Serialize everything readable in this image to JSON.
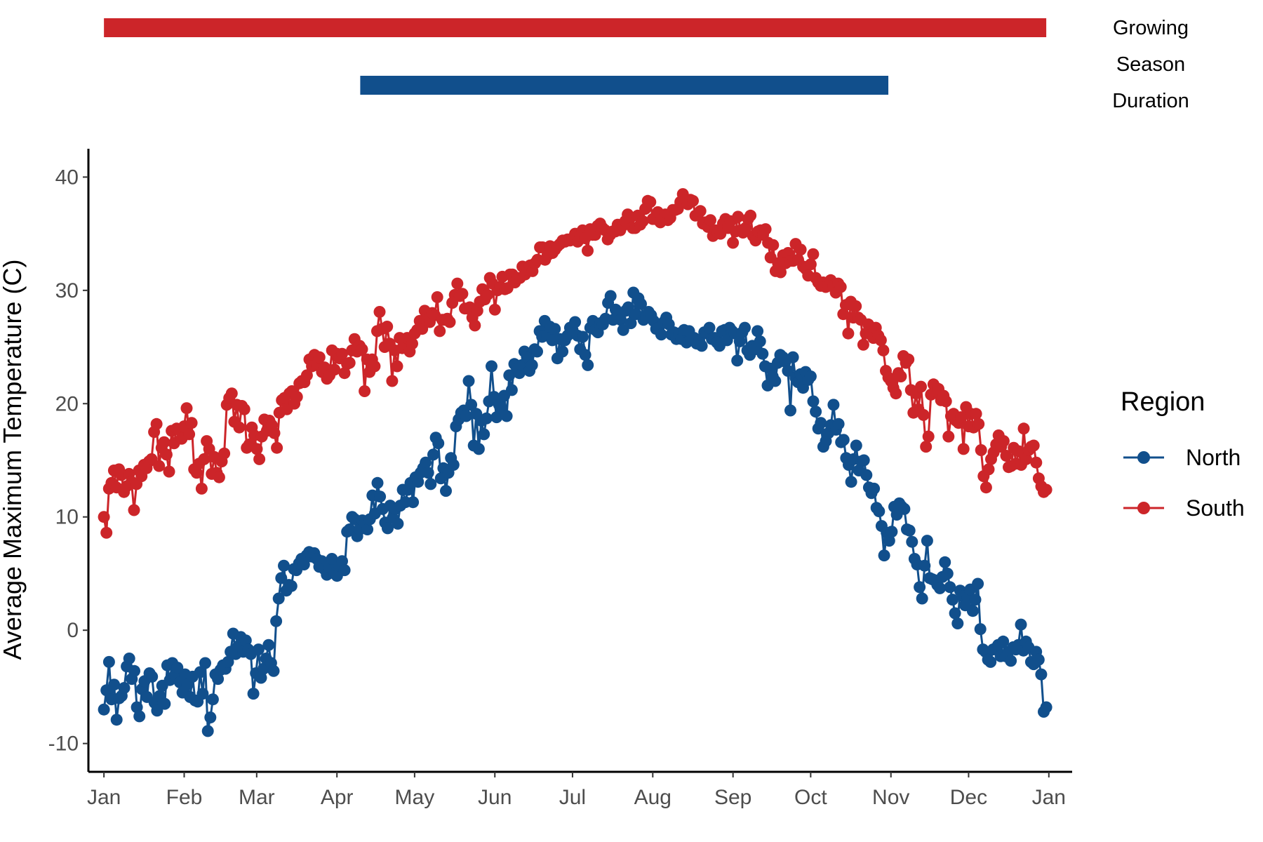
{
  "chart_data": {
    "type": "line",
    "xlabel": "",
    "ylabel": "Average Maximum Temperature (C)",
    "ylim": [
      -12.5,
      42.5
    ],
    "xlim_day": [
      -5,
      375
    ],
    "grid": false,
    "yticks": [
      {
        "value": -10,
        "label": "-10"
      },
      {
        "value": 0,
        "label": "0"
      },
      {
        "value": 10,
        "label": "10"
      },
      {
        "value": 20,
        "label": "20"
      },
      {
        "value": 30,
        "label": "30"
      },
      {
        "value": 40,
        "label": "40"
      }
    ],
    "xticks": [
      {
        "day": 1,
        "label": "Jan"
      },
      {
        "day": 32,
        "label": "Feb"
      },
      {
        "day": 60,
        "label": "Mar"
      },
      {
        "day": 91,
        "label": "Apr"
      },
      {
        "day": 121,
        "label": "May"
      },
      {
        "day": 152,
        "label": "Jun"
      },
      {
        "day": 182,
        "label": "Jul"
      },
      {
        "day": 213,
        "label": "Aug"
      },
      {
        "day": 244,
        "label": "Sep"
      },
      {
        "day": 274,
        "label": "Oct"
      },
      {
        "day": 305,
        "label": "Nov"
      },
      {
        "day": 335,
        "label": "Dec"
      },
      {
        "day": 366,
        "label": "Jan"
      }
    ],
    "legend": {
      "title": "Region",
      "position": "right",
      "entries": [
        "North",
        "South"
      ]
    },
    "series": [
      {
        "name": "North",
        "color": "#114f8c",
        "x_day_range": [
          1,
          365
        ],
        "values": [
          -7.0,
          -5.3,
          -2.8,
          -6.1,
          -4.8,
          -7.9,
          -6.0,
          -5.8,
          -5.1,
          -3.2,
          -2.5,
          -4.3,
          -3.6,
          -6.8,
          -7.6,
          -5.2,
          -4.5,
          -5.9,
          -3.8,
          -4.1,
          -6.4,
          -7.1,
          -5.8,
          -4.9,
          -6.5,
          -3.1,
          -4.4,
          -2.9,
          -4.0,
          -3.3,
          -4.6,
          -5.5,
          -3.9,
          -4.8,
          -5.9,
          -4.1,
          -6.2,
          -6.3,
          -3.7,
          -5.6,
          -2.9,
          -8.9,
          -7.7,
          -6.1,
          -3.9,
          -4.3,
          -3.5,
          -3.1,
          -3.4,
          -2.8,
          -1.9,
          -0.3,
          -2.1,
          -1.4,
          -0.6,
          -1.9,
          -0.9,
          -1.7,
          -2.1,
          -5.6,
          -3.8,
          -1.7,
          -4.2,
          -3.4,
          -2.5,
          -1.3,
          -2.9,
          -3.6,
          0.8,
          2.8,
          4.6,
          5.7,
          3.5,
          4.0,
          3.9,
          5.4,
          5.3,
          5.9,
          6.3,
          5.8,
          6.6,
          6.9,
          6.5,
          6.8,
          6.3,
          5.6,
          6.1,
          5.4,
          4.9,
          5.6,
          6.3,
          5.0,
          4.8,
          5.7,
          6.1,
          5.3,
          8.7,
          8.9,
          10.0,
          9.8,
          8.3,
          8.9,
          9.7,
          9.5,
          8.9,
          9.8,
          11.9,
          10.3,
          13.0,
          11.8,
          10.7,
          9.5,
          9.0,
          11.0,
          9.9,
          10.7,
          9.4,
          11.0,
          12.4,
          11.3,
          12.4,
          13.0,
          11.3,
          13.5,
          13.1,
          13.9,
          14.3,
          14.8,
          13.9,
          12.9,
          15.5,
          17.0,
          16.5,
          13.4,
          14.3,
          12.3,
          13.9,
          15.2,
          14.6,
          18.0,
          18.6,
          19.2,
          19.4,
          18.9,
          22.0,
          19.9,
          16.3,
          19.1,
          16.0,
          18.5,
          17.3,
          18.7,
          20.2,
          23.3,
          20.6,
          18.8,
          19.9,
          19.6,
          20.7,
          18.9,
          22.5,
          21.2,
          23.5,
          23.1,
          22.7,
          23.4,
          24.6,
          24.1,
          22.9,
          23.4,
          24.8,
          24.6,
          26.4,
          25.9,
          27.3,
          26.0,
          26.8,
          25.6,
          26.6,
          24.0,
          25.7,
          24.6,
          25.6,
          26.0,
          26.7,
          26.5,
          27.2,
          26.0,
          24.8,
          25.9,
          24.3,
          23.4,
          26.7,
          27.3,
          26.5,
          26.3,
          27.1,
          27.0,
          27.5,
          28.9,
          29.5,
          27.4,
          28.3,
          27.9,
          27.4,
          26.5,
          28.2,
          28.5,
          27.1,
          29.8,
          27.9,
          29.3,
          28.8,
          27.4,
          27.6,
          28.1,
          27.8,
          27.3,
          26.6,
          26.7,
          26.1,
          27.2,
          27.6,
          27.0,
          26.1,
          26.3,
          25.7,
          26.2,
          25.7,
          26.5,
          25.4,
          26.4,
          25.6,
          25.8,
          25.3,
          25.6,
          25.1,
          26.3,
          26.2,
          26.7,
          25.7,
          25.8,
          25.4,
          25.1,
          26.4,
          26.5,
          25.6,
          26.7,
          26.4,
          26.2,
          23.8,
          25.5,
          26.3,
          26.7,
          24.7,
          24.3,
          25.1,
          24.8,
          26.4,
          25.5,
          24.4,
          23.3,
          21.6,
          23.1,
          22.4,
          22.0,
          23.6,
          24.3,
          24.1,
          23.7,
          22.9,
          19.4,
          24.1,
          22.3,
          21.9,
          22.6,
          21.4,
          22.8,
          22.1,
          22.4,
          20.2,
          19.3,
          17.8,
          18.3,
          16.2,
          16.7,
          17.4,
          18.1,
          19.9,
          17.7,
          18.2,
          16.6,
          16.8,
          15.2,
          14.6,
          13.1,
          15.1,
          16.3,
          14.1,
          14.9,
          15.0,
          13.7,
          12.6,
          12.1,
          12.5,
          10.8,
          10.5,
          9.2,
          6.6,
          8.6,
          7.9,
          8.7,
          10.9,
          10.2,
          11.2,
          10.9,
          10.7,
          8.9,
          8.8,
          7.8,
          6.3,
          5.8,
          3.8,
          2.8,
          5.7,
          7.9,
          4.6,
          4.5,
          4.4,
          4.0,
          3.7,
          4.7,
          6.0,
          5.0,
          3.8,
          2.7,
          1.5,
          0.6,
          3.5,
          3.0,
          2.2,
          2.9,
          3.6,
          1.7,
          2.7,
          4.1,
          0.1,
          -1.7,
          -1.9,
          -2.6,
          -2.8,
          -1.7,
          -1.6,
          -1.3,
          -2.3,
          -1.0,
          -2.3,
          -1.9,
          -2.7,
          -1.5,
          -1.7,
          -1.3,
          0.5,
          -1.8,
          -1.0,
          -1.5,
          -2.8,
          -3.0,
          -1.9,
          -2.6,
          -3.9,
          -7.2,
          -6.8
        ]
      },
      {
        "name": "South",
        "color": "#cc2529",
        "x_day_range": [
          1,
          365
        ],
        "values": [
          10.0,
          8.6,
          12.5,
          13.0,
          14.1,
          12.6,
          14.2,
          13.7,
          12.2,
          12.7,
          13.8,
          13.1,
          10.6,
          12.9,
          14.1,
          13.6,
          14.6,
          14.3,
          14.9,
          15.1,
          17.5,
          18.2,
          14.5,
          16.1,
          16.6,
          15.5,
          14.0,
          17.6,
          16.5,
          17.8,
          17.7,
          16.9,
          18.0,
          19.6,
          17.3,
          18.3,
          14.2,
          13.9,
          14.7,
          12.5,
          15.1,
          16.7,
          16.0,
          13.8,
          15.3,
          13.9,
          13.5,
          14.9,
          15.6,
          19.9,
          20.5,
          20.9,
          18.4,
          19.9,
          17.9,
          19.8,
          19.5,
          16.1,
          16.4,
          17.9,
          17.2,
          16.0,
          15.1,
          17.1,
          18.6,
          17.6,
          18.5,
          18.1,
          17.4,
          16.1,
          19.2,
          20.3,
          20.5,
          19.5,
          20.9,
          21.1,
          20.0,
          20.6,
          21.8,
          22.0,
          21.9,
          22.5,
          23.9,
          23.3,
          24.3,
          23.4,
          24.1,
          22.8,
          23.2,
          22.2,
          22.5,
          24.7,
          23.0,
          24.4,
          24.0,
          24.4,
          22.7,
          23.5,
          23.6,
          24.7,
          25.7,
          24.6,
          25.1,
          24.8,
          21.1,
          23.9,
          22.8,
          23.9,
          23.3,
          26.4,
          28.1,
          26.6,
          25.0,
          26.8,
          25.3,
          22.0,
          24.7,
          23.3,
          25.8,
          24.9,
          25.3,
          25.8,
          24.6,
          25.3,
          26.2,
          26.5,
          27.3,
          26.6,
          28.2,
          27.4,
          27.2,
          28.0,
          27.8,
          29.4,
          26.4,
          27.4,
          27.4,
          27.5,
          27.2,
          28.9,
          29.6,
          30.6,
          29.5,
          29.7,
          28.4,
          28.4,
          28.5,
          27.6,
          26.9,
          28.2,
          29.0,
          30.1,
          29.2,
          29.6,
          31.1,
          30.6,
          28.3,
          30.0,
          30.3,
          31.2,
          30.1,
          30.2,
          31.4,
          31.4,
          30.7,
          31.1,
          31.1,
          32.1,
          31.4,
          31.8,
          32.2,
          31.7,
          32.4,
          32.7,
          33.8,
          33.8,
          32.7,
          33.1,
          33.9,
          33.3,
          33.6,
          33.9,
          34.1,
          34.4,
          34.3,
          34.5,
          34.4,
          34.6,
          35.0,
          34.3,
          34.8,
          35.3,
          34.6,
          33.5,
          35.4,
          34.9,
          34.9,
          35.7,
          35.9,
          35.5,
          35.3,
          34.5,
          34.9,
          35.2,
          35.2,
          35.8,
          35.3,
          35.7,
          36.1,
          36.7,
          36.4,
          35.5,
          35.5,
          36.6,
          35.8,
          36.1,
          37.2,
          37.9,
          37.8,
          36.3,
          36.3,
          36.9,
          36.0,
          36.5,
          36.7,
          36.2,
          36.4,
          37.1,
          37.1,
          37.2,
          37.8,
          38.5,
          38.0,
          37.6,
          38.0,
          37.9,
          36.6,
          36.7,
          37.0,
          35.9,
          36.0,
          35.6,
          36.2,
          34.8,
          35.3,
          35.1,
          35.0,
          35.9,
          36.3,
          35.5,
          36.1,
          34.2,
          35.2,
          36.5,
          35.3,
          35.1,
          35.5,
          36.3,
          36.6,
          34.8,
          34.4,
          35.2,
          35.3,
          34.9,
          35.4,
          34.2,
          32.9,
          34.0,
          31.7,
          32.4,
          31.6,
          33.1,
          32.4,
          33.3,
          32.6,
          32.6,
          34.1,
          32.7,
          33.6,
          32.1,
          31.9,
          31.3,
          32.3,
          33.2,
          31.1,
          30.7,
          30.4,
          30.7,
          30.3,
          30.4,
          30.9,
          30.4,
          29.8,
          30.6,
          30.3,
          27.9,
          28.7,
          26.2,
          29.0,
          27.6,
          28.6,
          27.6,
          27.4,
          25.2,
          26.2,
          27.0,
          26.1,
          25.8,
          26.7,
          26.0,
          25.6,
          24.7,
          22.9,
          22.3,
          22.0,
          21.4,
          20.9,
          22.7,
          22.4,
          24.2,
          23.6,
          23.9,
          21.2,
          19.2,
          20.9,
          19.5,
          21.5,
          19.0,
          16.2,
          17.1,
          20.8,
          21.7,
          21.1,
          21.3,
          20.3,
          20.7,
          20.2,
          17.1,
          18.9,
          19.1,
          18.5,
          18.3,
          18.8,
          16.0,
          19.7,
          18.0,
          19.1,
          17.9,
          19.1,
          18.2,
          15.9,
          13.6,
          12.6,
          14.2,
          15.1,
          15.7,
          16.4,
          17.2,
          16.2,
          16.7,
          15.4,
          14.4,
          14.5,
          16.1,
          14.7,
          15.8,
          14.6,
          17.8,
          15.1,
          15.9,
          16.2,
          16.3,
          14.8,
          13.4,
          12.7,
          12.2,
          12.4
        ]
      }
    ],
    "growing_season": {
      "label": "Growing Season Duration",
      "label_lines": [
        "Growing",
        "Season",
        "Duration"
      ],
      "bars": [
        {
          "series": "South",
          "start_day": 1,
          "end_day": 365,
          "color": "#cc2529"
        },
        {
          "series": "North",
          "start_day": 100,
          "end_day": 304,
          "color": "#114f8c"
        }
      ]
    }
  }
}
